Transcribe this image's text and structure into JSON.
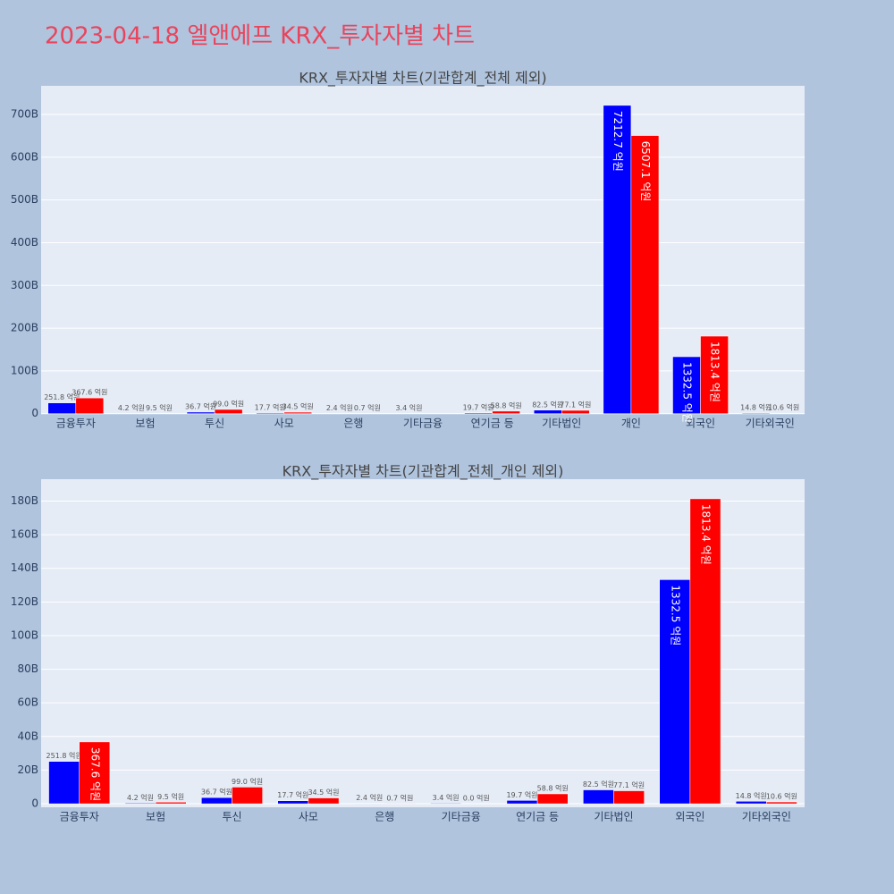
{
  "title": "2023-04-18 엘앤에프 KRX_투자자별 차트",
  "chart_data": [
    {
      "type": "bar",
      "title": "KRX_투자자별 차트(기관합계_전체 제외)",
      "categories": [
        "금융투자",
        "보험",
        "투신",
        "사모",
        "은행",
        "기타금융",
        "연기금 등",
        "기타법인",
        "개인",
        "외국인",
        "기타외국인"
      ],
      "series": [
        {
          "color": "#0000ff",
          "values": [
            25.18,
            0.42,
            3.67,
            1.77,
            0.24,
            0.34,
            1.97,
            8.25,
            721.27,
            133.25,
            1.48
          ],
          "value_labels": [
            "251.8 억원",
            "4.2 억원",
            "36.7 억원",
            "17.7 억원",
            "2.4 억원",
            "3.4 억원",
            "19.7 억원",
            "82.5 억원",
            "7212.7 억원",
            "1332.5 억원",
            "14.8 억원"
          ]
        },
        {
          "color": "#ff0000",
          "values": [
            36.76,
            0.95,
            9.9,
            3.45,
            0.07,
            null,
            5.88,
            7.71,
            650.71,
            181.34,
            1.06
          ],
          "value_labels": [
            "367.6 억원",
            "9.5 억원",
            "99.0 억원",
            "34.5 억원",
            "0.7 억원",
            null,
            "58.8 억원",
            "77.1 억원",
            "6507.1 억원",
            "1813.4 억원",
            "10.6 억원"
          ]
        }
      ],
      "ylim": [
        -0.6,
        767
      ],
      "yticks": [
        0,
        {
          "value": 100,
          "label": "100B"
        },
        {
          "value": 200,
          "label": "200B"
        },
        {
          "value": 300,
          "label": "300B"
        },
        {
          "value": 400,
          "label": "400B"
        },
        {
          "value": 500,
          "label": "500B"
        },
        {
          "value": 600,
          "label": "600B"
        },
        {
          "value": 700,
          "label": "700B"
        }
      ],
      "grid": true
    },
    {
      "type": "bar",
      "title": "KRX_투자자별 차트(기관합계_전체_개인 제외)",
      "categories": [
        "금융투자",
        "보험",
        "투신",
        "사모",
        "은행",
        "기타금융",
        "연기금 등",
        "기타법인",
        "외국인",
        "기타외국인"
      ],
      "series": [
        {
          "color": "#0000ff",
          "values": [
            25.18,
            0.42,
            3.67,
            1.77,
            0.24,
            0.34,
            1.97,
            8.25,
            133.25,
            1.48
          ],
          "value_labels": [
            "251.8 억원",
            "4.2 억원",
            "36.7 억원",
            "17.7 억원",
            "2.4 억원",
            "3.4 억원",
            "19.7 억원",
            "82.5 억원",
            "1332.5 억원",
            "14.8 억원"
          ]
        },
        {
          "color": "#ff0000",
          "values": [
            36.76,
            0.95,
            9.9,
            3.45,
            0.07,
            0,
            5.88,
            7.71,
            181.34,
            1.06
          ],
          "value_labels": [
            "367.6 억원",
            "9.5 억원",
            "99.0 억원",
            "34.5 억원",
            "0.7 억원",
            "0.0 억원",
            "58.8 억원",
            "77.1 억원",
            "1813.4 억원",
            "10.6 억원"
          ]
        }
      ],
      "ylim": [
        -2.1,
        193
      ],
      "yticks": [
        0,
        {
          "value": 20,
          "label": "20B"
        },
        {
          "value": 40,
          "label": "40B"
        },
        {
          "value": 60,
          "label": "60B"
        },
        {
          "value": 80,
          "label": "80B"
        },
        {
          "value": 100,
          "label": "100B"
        },
        {
          "value": 120,
          "label": "120B"
        },
        {
          "value": 140,
          "label": "140B"
        },
        {
          "value": 160,
          "label": "160B"
        },
        {
          "value": 180,
          "label": "180B"
        }
      ],
      "grid": true
    }
  ]
}
